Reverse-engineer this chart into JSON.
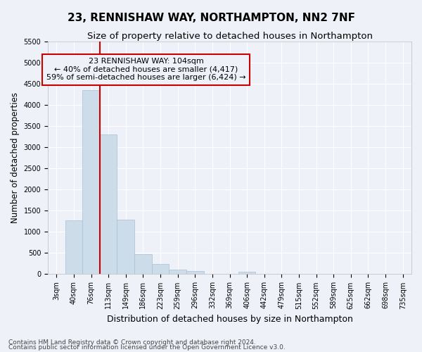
{
  "title": "23, RENNISHAW WAY, NORTHAMPTON, NN2 7NF",
  "subtitle": "Size of property relative to detached houses in Northampton",
  "xlabel": "Distribution of detached houses by size in Northampton",
  "ylabel": "Number of detached properties",
  "footnote1": "Contains HM Land Registry data © Crown copyright and database right 2024.",
  "footnote2": "Contains public sector information licensed under the Open Government Licence v3.0.",
  "bar_labels": [
    "3sqm",
    "40sqm",
    "76sqm",
    "113sqm",
    "149sqm",
    "186sqm",
    "223sqm",
    "259sqm",
    "296sqm",
    "332sqm",
    "369sqm",
    "406sqm",
    "442sqm",
    "479sqm",
    "515sqm",
    "552sqm",
    "589sqm",
    "625sqm",
    "662sqm",
    "698sqm",
    "735sqm"
  ],
  "bar_values": [
    0,
    1270,
    4350,
    3300,
    1290,
    480,
    240,
    100,
    70,
    0,
    0,
    60,
    0,
    0,
    0,
    0,
    0,
    0,
    0,
    0,
    0
  ],
  "bar_color": "#ccdce8",
  "bar_edge_color": "#a8c0d4",
  "vline_x": 2.5,
  "vline_color": "#cc0000",
  "ylim": [
    0,
    5500
  ],
  "yticks": [
    0,
    500,
    1000,
    1500,
    2000,
    2500,
    3000,
    3500,
    4000,
    4500,
    5000,
    5500
  ],
  "annotation_text": "23 RENNISHAW WAY: 104sqm\n← 40% of detached houses are smaller (4,417)\n59% of semi-detached houses are larger (6,424) →",
  "annotation_box_color": "#cc0000",
  "bg_color": "#eef2f8",
  "grid_color": "#ffffff",
  "title_fontsize": 11,
  "subtitle_fontsize": 9.5,
  "axis_label_fontsize": 9,
  "ylabel_fontsize": 8.5,
  "tick_fontsize": 7,
  "annotation_fontsize": 8,
  "footnote_fontsize": 6.5
}
